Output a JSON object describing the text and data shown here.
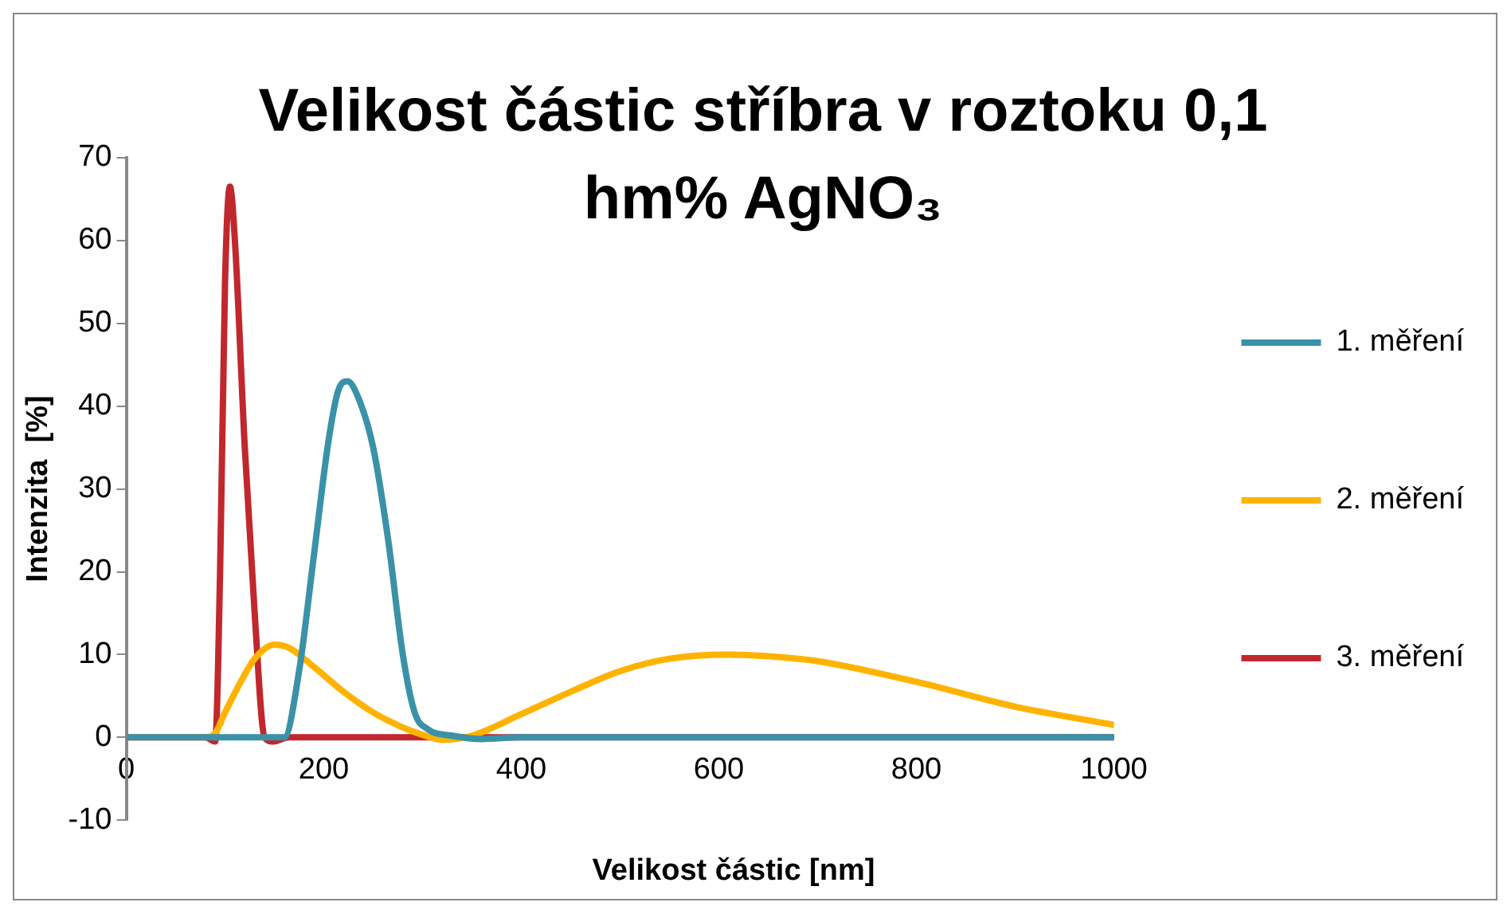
{
  "chart_data": {
    "type": "line",
    "title": "Velikost částic stříbra v roztoku 0,1 hm% AgNO₃",
    "xlabel": "Velikost částic [nm]",
    "ylabel": "Intenzita  [%]",
    "xlim": [
      0,
      1000
    ],
    "xticks": [
      0,
      200,
      400,
      600,
      800,
      1000
    ],
    "ylim": [
      -10,
      70
    ],
    "yticks": [
      -10,
      0,
      10,
      20,
      30,
      40,
      50,
      60,
      70
    ],
    "grid": false,
    "legend": "right",
    "marker": "none",
    "line_style": "solid",
    "series": [
      {
        "name": "1. měření",
        "color": "#3a92a8",
        "x": [
          0,
          150,
          160,
          175,
          190,
          205,
          215,
          224,
          235,
          250,
          265,
          280,
          292,
          305,
          330,
          360,
          400,
          1000
        ],
        "values": [
          0,
          0,
          0,
          8,
          22,
          36,
          42,
          43,
          41,
          35,
          24,
          10,
          3,
          1,
          0.2,
          -0.2,
          0,
          0
        ]
      },
      {
        "name": "2. měření",
        "color": "#ffb300",
        "x": [
          0,
          80,
          90,
          100,
          115,
          130,
          150,
          165,
          190,
          220,
          250,
          280,
          300,
          320,
          350,
          400,
          450,
          500,
          550,
          610,
          650,
          700,
          800,
          900,
          1000
        ],
        "values": [
          0,
          0,
          0.5,
          3,
          6.5,
          9.5,
          11.2,
          10.8,
          8.5,
          5.5,
          3,
          1.2,
          0.3,
          -0.3,
          0.2,
          2.8,
          5.5,
          8,
          9.5,
          10,
          9.8,
          9.2,
          6.7,
          3.7,
          1.5
        ]
      },
      {
        "name": "3. měření",
        "color": "#c0282d",
        "x": [
          0,
          80,
          90,
          95,
          100,
          105,
          110,
          120,
          130,
          140,
          148,
          165,
          1000
        ],
        "values": [
          0,
          0,
          -0.5,
          20,
          55,
          66.5,
          60,
          35,
          15,
          0,
          -0.5,
          0,
          0
        ]
      }
    ]
  }
}
